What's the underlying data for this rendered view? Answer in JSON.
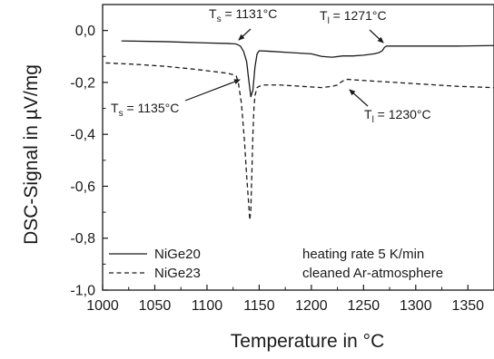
{
  "chart_data": {
    "type": "line",
    "xlabel": "Temperature in °C",
    "ylabel": "DSC-Signal in µV/mg",
    "xlim": [
      1000,
      1375
    ],
    "ylim": [
      -1.0,
      0.1
    ],
    "x_ticks": [
      1000,
      1050,
      1100,
      1150,
      1200,
      1250,
      1300,
      1350
    ],
    "x_tick_labels": [
      "1000",
      "1050",
      "1100",
      "1150",
      "1200",
      "1250",
      "1300",
      "1350"
    ],
    "y_ticks": [
      0.0,
      -0.2,
      -0.4,
      -0.6,
      -0.8,
      -1.0
    ],
    "y_tick_labels": [
      "0,0",
      "-0,2",
      "-0,4",
      "-0,6",
      "-0,8",
      "-1,0"
    ],
    "grid": false,
    "legend_position": "bottom-left",
    "series": [
      {
        "name": "NiGe20",
        "line_style": "solid",
        "x": [
          1018,
          1060,
          1100,
          1120,
          1128,
          1132,
          1135,
          1138,
          1140,
          1142,
          1144,
          1146,
          1148,
          1150,
          1160,
          1180,
          1200,
          1210,
          1220,
          1230,
          1240,
          1250,
          1260,
          1265,
          1268,
          1270,
          1272,
          1280,
          1300,
          1320,
          1340,
          1375
        ],
        "y": [
          -0.04,
          -0.043,
          -0.048,
          -0.05,
          -0.052,
          -0.06,
          -0.08,
          -0.12,
          -0.19,
          -0.255,
          -0.23,
          -0.14,
          -0.09,
          -0.078,
          -0.08,
          -0.085,
          -0.09,
          -0.1,
          -0.103,
          -0.098,
          -0.098,
          -0.095,
          -0.09,
          -0.085,
          -0.078,
          -0.065,
          -0.06,
          -0.06,
          -0.06,
          -0.06,
          -0.06,
          -0.058
        ]
      },
      {
        "name": "NiGe23",
        "line_style": "dashed",
        "x": [
          1003,
          1030,
          1060,
          1090,
          1110,
          1120,
          1125,
          1128,
          1130,
          1133,
          1136,
          1138,
          1140,
          1141,
          1142,
          1143,
          1144,
          1145,
          1146,
          1148,
          1150,
          1155,
          1170,
          1190,
          1210,
          1220,
          1225,
          1228,
          1232,
          1235,
          1240,
          1260,
          1280,
          1300,
          1320,
          1340,
          1375
        ],
        "y": [
          -0.125,
          -0.13,
          -0.138,
          -0.15,
          -0.16,
          -0.165,
          -0.17,
          -0.175,
          -0.2,
          -0.28,
          -0.43,
          -0.56,
          -0.67,
          -0.73,
          -0.69,
          -0.55,
          -0.4,
          -0.3,
          -0.25,
          -0.22,
          -0.215,
          -0.21,
          -0.21,
          -0.215,
          -0.22,
          -0.215,
          -0.21,
          -0.2,
          -0.19,
          -0.188,
          -0.19,
          -0.195,
          -0.2,
          -0.205,
          -0.21,
          -0.215,
          -0.22
        ]
      }
    ],
    "annotations": [
      {
        "text_main": "T",
        "text_sub": "s",
        "text_value": " = 1131°C",
        "x": 1131,
        "y": -0.05
      },
      {
        "text_main": "T",
        "text_sub": "l",
        "text_value": " = 1271°C",
        "x": 1268,
        "y": -0.075
      },
      {
        "text_main": "T",
        "text_sub": "s",
        "text_value": " = 1135°C",
        "x": 1128,
        "y": -0.175
      },
      {
        "text_main": "T",
        "text_sub": "l",
        "text_value": " = 1230°C",
        "x": 1230,
        "y": -0.195
      }
    ],
    "notes": [
      "heating rate 5 K/min",
      "cleaned Ar-atmosphere"
    ]
  }
}
